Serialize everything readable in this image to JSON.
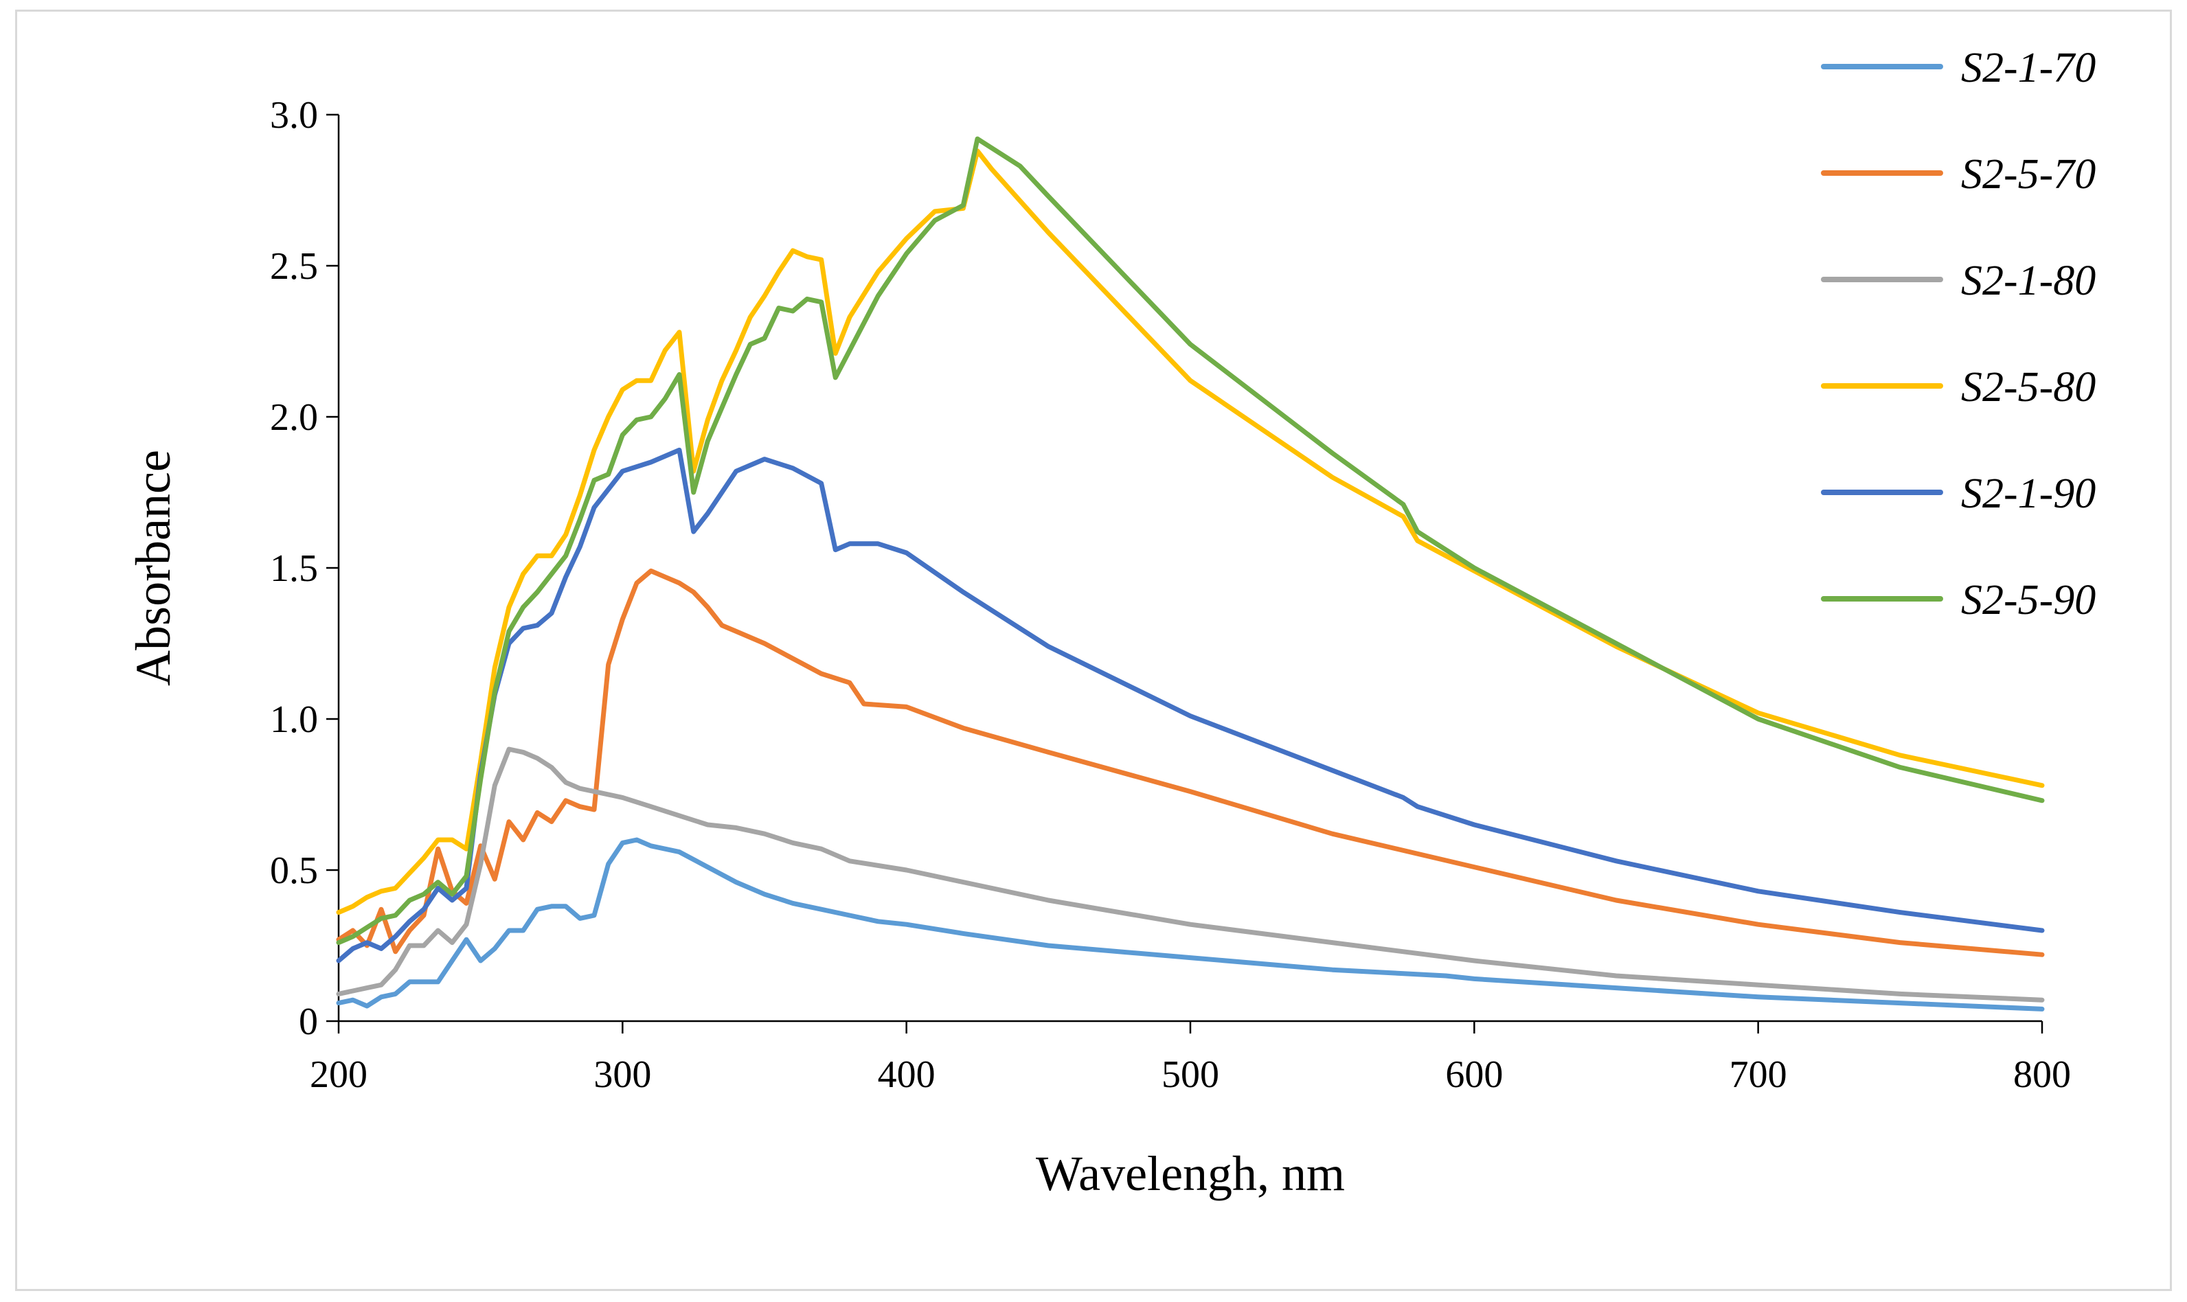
{
  "chart_data": {
    "type": "line",
    "title": "",
    "xlabel": "Wavelengh, nm",
    "ylabel": "Absorbance",
    "xlim": [
      200,
      800
    ],
    "ylim": [
      0,
      3.0
    ],
    "xticks": [
      200,
      300,
      400,
      500,
      600,
      700,
      800
    ],
    "xtick_labels": [
      "200",
      "300",
      "400",
      "500",
      "600",
      "700",
      "800"
    ],
    "yticks": [
      0,
      0.5,
      1.0,
      1.5,
      2.0,
      2.5,
      3.0
    ],
    "ytick_labels": [
      "0",
      "0.5",
      "1.0",
      "1.5",
      "2.0",
      "2.5",
      "3.0"
    ],
    "grid": false,
    "legend_position": "right",
    "series": [
      {
        "name": "S2-1-70",
        "color": "#5b9bd5",
        "x": [
          200,
          205,
          210,
          215,
          220,
          225,
          230,
          235,
          240,
          245,
          250,
          255,
          260,
          265,
          270,
          275,
          280,
          285,
          290,
          295,
          300,
          305,
          310,
          320,
          330,
          340,
          350,
          360,
          370,
          380,
          390,
          400,
          420,
          450,
          500,
          550,
          590,
          600,
          650,
          700,
          750,
          800
        ],
        "y": [
          0.06,
          0.07,
          0.05,
          0.08,
          0.09,
          0.13,
          0.13,
          0.13,
          0.2,
          0.27,
          0.2,
          0.24,
          0.3,
          0.3,
          0.37,
          0.38,
          0.38,
          0.34,
          0.35,
          0.52,
          0.59,
          0.6,
          0.58,
          0.56,
          0.51,
          0.46,
          0.42,
          0.39,
          0.37,
          0.35,
          0.33,
          0.32,
          0.29,
          0.25,
          0.21,
          0.17,
          0.15,
          0.14,
          0.11,
          0.08,
          0.06,
          0.04
        ]
      },
      {
        "name": "S2-5-70",
        "color": "#ed7d31",
        "x": [
          200,
          205,
          210,
          215,
          220,
          225,
          230,
          235,
          240,
          245,
          250,
          255,
          260,
          265,
          270,
          275,
          280,
          285,
          290,
          295,
          300,
          305,
          310,
          315,
          320,
          325,
          330,
          335,
          340,
          350,
          360,
          370,
          380,
          385,
          400,
          420,
          450,
          500,
          550,
          600,
          650,
          700,
          750,
          800
        ],
        "y": [
          0.27,
          0.3,
          0.25,
          0.37,
          0.23,
          0.3,
          0.35,
          0.57,
          0.43,
          0.39,
          0.58,
          0.47,
          0.66,
          0.6,
          0.69,
          0.66,
          0.73,
          0.71,
          0.7,
          1.18,
          1.33,
          1.45,
          1.49,
          1.47,
          1.45,
          1.42,
          1.37,
          1.31,
          1.29,
          1.25,
          1.2,
          1.15,
          1.12,
          1.05,
          1.04,
          0.97,
          0.89,
          0.76,
          0.62,
          0.51,
          0.4,
          0.32,
          0.26,
          0.22
        ]
      },
      {
        "name": "S2-1-80",
        "color": "#a5a5a5",
        "x": [
          200,
          205,
          210,
          215,
          220,
          225,
          230,
          235,
          240,
          245,
          250,
          255,
          260,
          265,
          270,
          275,
          280,
          285,
          290,
          300,
          310,
          320,
          330,
          340,
          350,
          360,
          370,
          380,
          400,
          450,
          500,
          550,
          600,
          650,
          700,
          750,
          800
        ],
        "y": [
          0.09,
          0.1,
          0.11,
          0.12,
          0.17,
          0.25,
          0.25,
          0.3,
          0.26,
          0.32,
          0.52,
          0.78,
          0.9,
          0.89,
          0.87,
          0.84,
          0.79,
          0.77,
          0.76,
          0.74,
          0.71,
          0.68,
          0.65,
          0.64,
          0.62,
          0.59,
          0.57,
          0.53,
          0.5,
          0.4,
          0.32,
          0.26,
          0.2,
          0.15,
          0.12,
          0.09,
          0.07
        ]
      },
      {
        "name": "S2-5-80",
        "color": "#ffc000",
        "x": [
          200,
          205,
          210,
          215,
          220,
          225,
          230,
          235,
          240,
          245,
          250,
          255,
          260,
          265,
          270,
          275,
          280,
          285,
          290,
          295,
          300,
          305,
          310,
          315,
          320,
          325,
          330,
          335,
          340,
          345,
          350,
          355,
          360,
          365,
          370,
          375,
          380,
          390,
          400,
          410,
          420,
          425,
          430,
          450,
          500,
          550,
          575,
          580,
          600,
          650,
          700,
          750,
          800
        ],
        "y": [
          0.36,
          0.38,
          0.41,
          0.43,
          0.44,
          0.49,
          0.54,
          0.6,
          0.6,
          0.57,
          0.86,
          1.17,
          1.37,
          1.48,
          1.54,
          1.54,
          1.61,
          1.74,
          1.89,
          2.0,
          2.09,
          2.12,
          2.12,
          2.22,
          2.28,
          1.82,
          1.99,
          2.12,
          2.22,
          2.33,
          2.4,
          2.48,
          2.55,
          2.53,
          2.52,
          2.21,
          2.33,
          2.48,
          2.59,
          2.68,
          2.69,
          2.88,
          2.82,
          2.61,
          2.12,
          1.8,
          1.67,
          1.59,
          1.49,
          1.24,
          1.02,
          0.88,
          0.78
        ]
      },
      {
        "name": "S2-1-90",
        "color": "#4472c4",
        "x": [
          200,
          205,
          210,
          215,
          220,
          225,
          230,
          235,
          240,
          245,
          250,
          255,
          260,
          265,
          270,
          275,
          280,
          285,
          290,
          300,
          310,
          320,
          325,
          330,
          340,
          350,
          360,
          370,
          375,
          380,
          390,
          400,
          420,
          450,
          500,
          550,
          575,
          580,
          600,
          650,
          700,
          750,
          800
        ],
        "y": [
          0.2,
          0.24,
          0.26,
          0.24,
          0.28,
          0.33,
          0.37,
          0.44,
          0.4,
          0.44,
          0.82,
          1.08,
          1.25,
          1.3,
          1.31,
          1.35,
          1.47,
          1.57,
          1.7,
          1.82,
          1.85,
          1.89,
          1.62,
          1.68,
          1.82,
          1.86,
          1.83,
          1.78,
          1.56,
          1.58,
          1.58,
          1.55,
          1.42,
          1.24,
          1.01,
          0.83,
          0.74,
          0.71,
          0.65,
          0.53,
          0.43,
          0.36,
          0.3
        ]
      },
      {
        "name": "S2-5-90",
        "color": "#70ad47",
        "x": [
          200,
          205,
          210,
          215,
          220,
          225,
          230,
          235,
          240,
          245,
          250,
          255,
          260,
          265,
          270,
          275,
          280,
          285,
          290,
          295,
          300,
          305,
          310,
          315,
          320,
          325,
          330,
          335,
          340,
          345,
          350,
          355,
          360,
          365,
          370,
          375,
          380,
          390,
          400,
          410,
          420,
          425,
          430,
          440,
          450,
          500,
          550,
          575,
          580,
          600,
          650,
          700,
          750,
          800
        ],
        "y": [
          0.26,
          0.28,
          0.31,
          0.34,
          0.35,
          0.4,
          0.42,
          0.46,
          0.42,
          0.48,
          0.8,
          1.09,
          1.29,
          1.37,
          1.42,
          1.48,
          1.54,
          1.66,
          1.79,
          1.81,
          1.94,
          1.99,
          2.0,
          2.06,
          2.14,
          1.75,
          1.92,
          2.03,
          2.14,
          2.24,
          2.26,
          2.36,
          2.35,
          2.39,
          2.38,
          2.13,
          2.22,
          2.4,
          2.54,
          2.65,
          2.7,
          2.92,
          2.89,
          2.83,
          2.73,
          2.24,
          1.88,
          1.71,
          1.62,
          1.5,
          1.25,
          1.0,
          0.84,
          0.73
        ]
      }
    ]
  }
}
